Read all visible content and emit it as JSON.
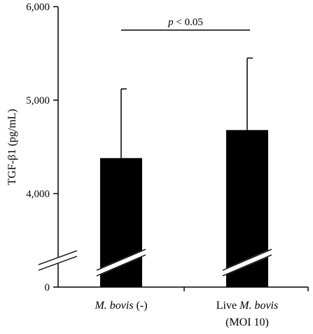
{
  "chart_data": {
    "type": "bar",
    "categories": [
      {
        "italic": "M. bovis",
        "rest": " (-)",
        "line2": ""
      },
      {
        "prefix": "Live ",
        "italic": "M. bovis",
        "line2": "(MOI 10)"
      }
    ],
    "values": [
      4380,
      4680
    ],
    "error_upper": [
      5120,
      5450
    ],
    "ylabel": "TGF-β1 (pg/mL)",
    "yticks": [
      "0",
      "4,000",
      "5,000",
      "6,000"
    ],
    "ylim": [
      3700,
      6000
    ],
    "axis_break": true,
    "significance": {
      "label_italic": "p",
      "label_rest": " < 0.05"
    },
    "bar_color": "#000000"
  }
}
